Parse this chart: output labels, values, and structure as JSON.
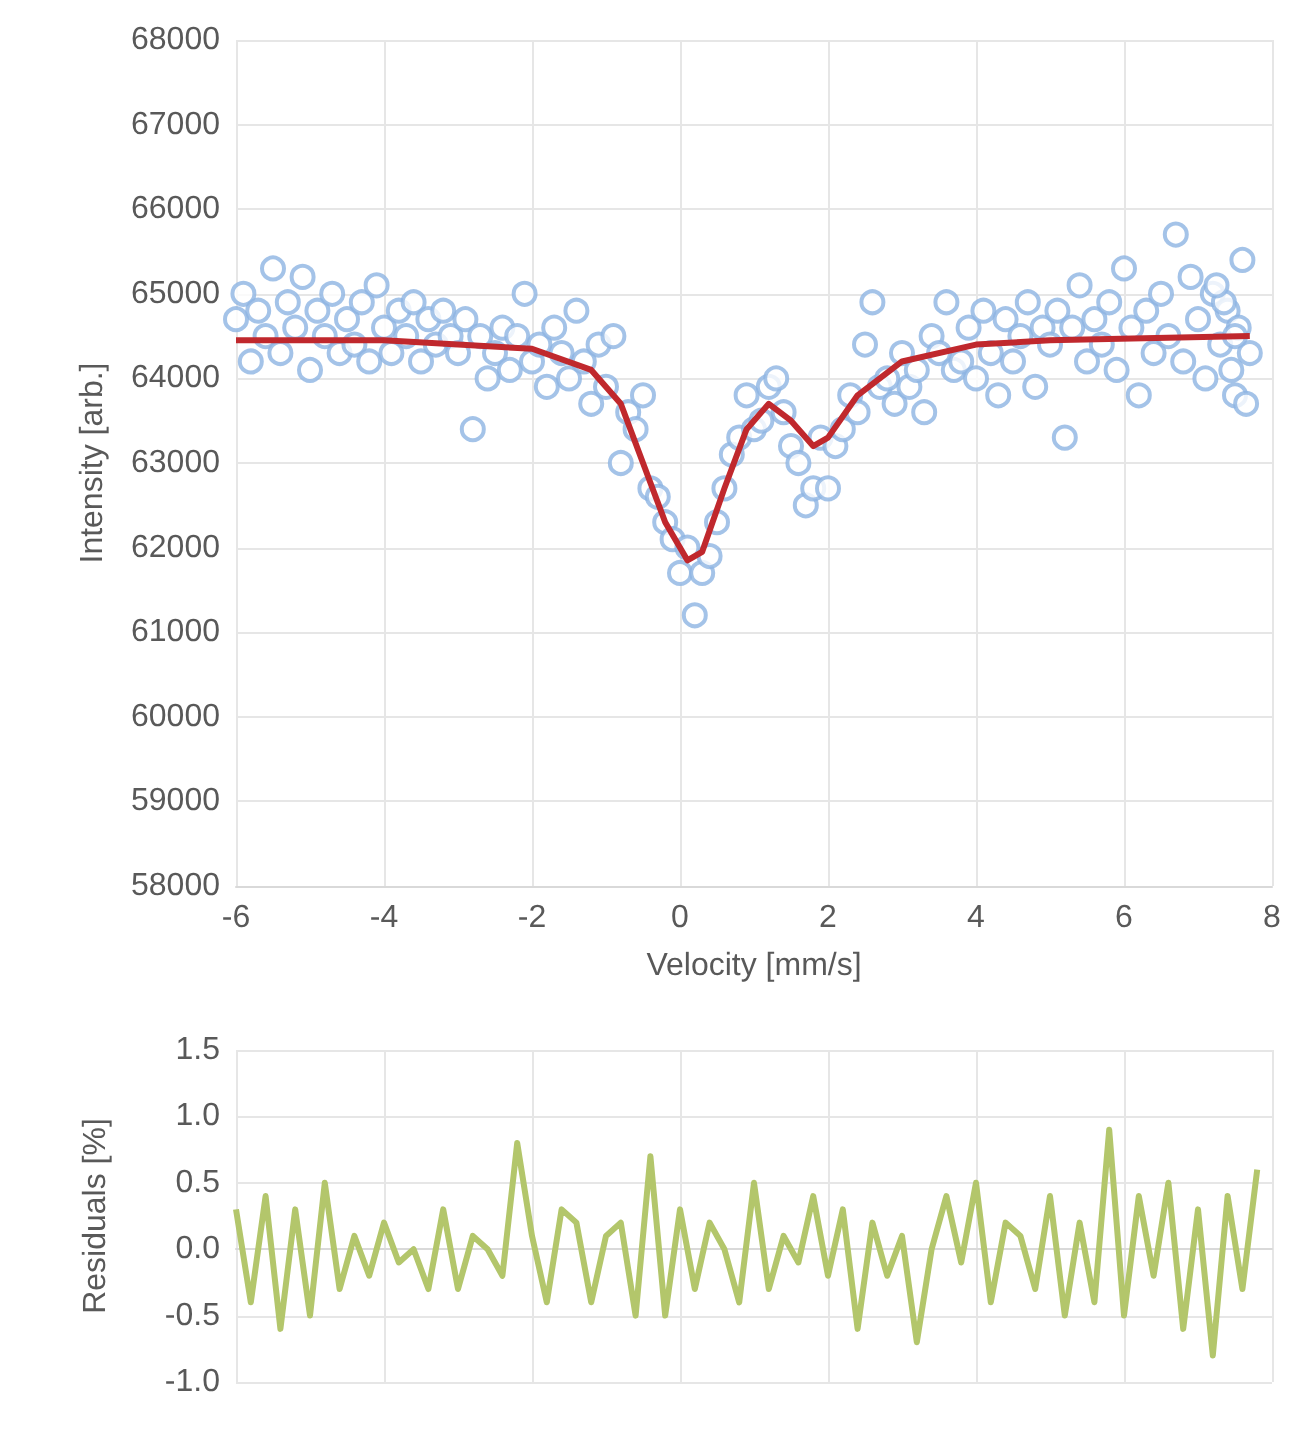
{
  "chart_data": [
    {
      "type": "scatter",
      "xlabel": "Velocity [mm/s]",
      "ylabel": "Intensity [arb.]",
      "xlim": [
        -6,
        8
      ],
      "xticks": [
        -6,
        -4,
        -2,
        0,
        2,
        4,
        6,
        8
      ],
      "ylim": [
        58000,
        68000
      ],
      "yticks": [
        58000,
        59000,
        60000,
        61000,
        62000,
        63000,
        64000,
        65000,
        66000,
        67000,
        68000
      ],
      "grid": true,
      "marker": "circle",
      "series": [
        {
          "color": "#8db4e2",
          "x": [
            -6.0,
            -5.9,
            -5.8,
            -5.7,
            -5.6,
            -5.5,
            -5.4,
            -5.3,
            -5.2,
            -5.1,
            -5.0,
            -4.9,
            -4.8,
            -4.7,
            -4.6,
            -4.5,
            -4.4,
            -4.3,
            -4.2,
            -4.1,
            -4.0,
            -3.9,
            -3.8,
            -3.7,
            -3.6,
            -3.5,
            -3.4,
            -3.3,
            -3.2,
            -3.1,
            -3.0,
            -2.9,
            -2.8,
            -2.7,
            -2.6,
            -2.5,
            -2.4,
            -2.3,
            -2.2,
            -2.1,
            -2.0,
            -1.9,
            -1.8,
            -1.7,
            -1.6,
            -1.5,
            -1.4,
            -1.3,
            -1.2,
            -1.1,
            -1.0,
            -0.9,
            -0.8,
            -0.7,
            -0.6,
            -0.5,
            -0.4,
            -0.3,
            -0.2,
            -0.1,
            0.0,
            0.1,
            0.2,
            0.3,
            0.4,
            0.5,
            0.6,
            0.7,
            0.8,
            0.9,
            1.0,
            1.1,
            1.2,
            1.3,
            1.4,
            1.5,
            1.6,
            1.7,
            1.8,
            1.9,
            2.0,
            2.1,
            2.2,
            2.3,
            2.4,
            2.5,
            2.6,
            2.7,
            2.8,
            2.9,
            3.0,
            3.1,
            3.2,
            3.3,
            3.4,
            3.5,
            3.6,
            3.7,
            3.8,
            3.9,
            4.0,
            4.1,
            4.2,
            4.3,
            4.4,
            4.5,
            4.6,
            4.7,
            4.8,
            4.9,
            5.0,
            5.1,
            5.2,
            5.3,
            5.4,
            5.5,
            5.6,
            5.7,
            5.8,
            5.9,
            6.0,
            6.1,
            6.2,
            6.3,
            6.4,
            6.5,
            6.6,
            6.7,
            6.8,
            6.9,
            7.0,
            7.1,
            7.2,
            7.3,
            7.4,
            7.5,
            7.6,
            7.7,
            7.35,
            7.45,
            7.55,
            7.65,
            7.25,
            7.5
          ],
          "values": [
            64700,
            65000,
            64200,
            64800,
            64500,
            65300,
            64300,
            64900,
            64600,
            65200,
            64100,
            64800,
            64500,
            65000,
            64300,
            64700,
            64400,
            64900,
            64200,
            65100,
            64600,
            64300,
            64800,
            64500,
            64900,
            64200,
            64700,
            64400,
            64800,
            64500,
            64300,
            64700,
            63400,
            64500,
            64000,
            64300,
            64600,
            64100,
            64500,
            65000,
            64200,
            64400,
            63900,
            64600,
            64300,
            64000,
            64800,
            64200,
            63700,
            64400,
            63900,
            64500,
            63000,
            63600,
            63400,
            63800,
            62700,
            62600,
            62300,
            62100,
            61700,
            62000,
            61200,
            61700,
            61900,
            62300,
            62700,
            63100,
            63300,
            63800,
            63400,
            63500,
            63900,
            64000,
            63600,
            63200,
            63000,
            62500,
            62700,
            63300,
            62700,
            63200,
            63400,
            63800,
            63600,
            64400,
            64900,
            63900,
            64000,
            63700,
            64300,
            63900,
            64100,
            63600,
            64500,
            64300,
            64900,
            64100,
            64200,
            64600,
            64000,
            64800,
            64300,
            63800,
            64700,
            64200,
            64500,
            64900,
            63900,
            64600,
            64400,
            64800,
            63300,
            64600,
            65100,
            64200,
            64700,
            64400,
            64900,
            64100,
            65300,
            64600,
            63800,
            64800,
            64300,
            65000,
            64500,
            65700,
            64200,
            65200,
            64700,
            64000,
            65000,
            64400,
            64800,
            63800,
            65400,
            64300,
            64900,
            64100,
            64600,
            63700,
            65100,
            64500
          ]
        },
        {
          "type": "line",
          "marker": "none",
          "color": "#c0282d",
          "x": [
            -6,
            -4,
            -2,
            -1.2,
            -0.8,
            -0.5,
            -0.2,
            0.1,
            0.3,
            0.6,
            0.9,
            1.2,
            1.5,
            1.8,
            2.0,
            2.4,
            3.0,
            4.0,
            5.0,
            7.7
          ],
          "values": [
            64450,
            64450,
            64350,
            64100,
            63700,
            63000,
            62300,
            61850,
            61950,
            62700,
            63400,
            63700,
            63500,
            63200,
            63300,
            63800,
            64200,
            64400,
            64450,
            64500
          ]
        }
      ]
    },
    {
      "type": "line",
      "ylabel": "Residuals [%]",
      "xlim": [
        -6,
        8
      ],
      "xticks": [
        -6,
        -4,
        -2,
        0,
        2,
        4,
        6,
        8
      ],
      "ylim": [
        -1,
        1.5
      ],
      "yticks": [
        {
          "value": -1,
          "label": "-1.0"
        },
        {
          "value": -0.5,
          "label": "-0.5"
        },
        {
          "value": 0,
          "label": "0.0"
        },
        {
          "value": 0.5,
          "label": "0.5"
        },
        {
          "value": 1,
          "label": "1.0"
        },
        {
          "value": 1.5,
          "label": "1.5"
        }
      ],
      "grid": true,
      "tick_labels": "y",
      "marker": "none",
      "series": [
        {
          "color": "#b3c66b",
          "x": [
            -6.0,
            -5.8,
            -5.6,
            -5.4,
            -5.2,
            -5.0,
            -4.8,
            -4.6,
            -4.4,
            -4.2,
            -4.0,
            -3.8,
            -3.6,
            -3.4,
            -3.2,
            -3.0,
            -2.8,
            -2.6,
            -2.4,
            -2.2,
            -2.0,
            -1.8,
            -1.6,
            -1.4,
            -1.2,
            -1.0,
            -0.8,
            -0.6,
            -0.4,
            -0.2,
            0.0,
            0.2,
            0.4,
            0.6,
            0.8,
            1.0,
            1.2,
            1.4,
            1.6,
            1.8,
            2.0,
            2.2,
            2.4,
            2.6,
            2.8,
            3.0,
            3.2,
            3.4,
            3.6,
            3.8,
            4.0,
            4.2,
            4.4,
            4.6,
            4.8,
            5.0,
            5.2,
            5.4,
            5.6,
            5.8,
            6.0,
            6.2,
            6.4,
            6.6,
            6.8,
            7.0,
            7.2,
            7.4,
            7.6,
            7.8
          ],
          "values": [
            0.3,
            -0.4,
            0.4,
            -0.6,
            0.3,
            -0.5,
            0.5,
            -0.3,
            0.1,
            -0.2,
            0.2,
            -0.1,
            0.0,
            -0.3,
            0.3,
            -0.3,
            0.1,
            0.0,
            -0.2,
            0.8,
            0.1,
            -0.4,
            0.3,
            0.2,
            -0.4,
            0.1,
            0.2,
            -0.5,
            0.7,
            -0.5,
            0.3,
            -0.3,
            0.2,
            0.0,
            -0.4,
            0.5,
            -0.3,
            0.1,
            -0.1,
            0.4,
            -0.2,
            0.3,
            -0.6,
            0.2,
            -0.2,
            0.1,
            -0.7,
            0.0,
            0.4,
            -0.1,
            0.5,
            -0.4,
            0.2,
            0.1,
            -0.3,
            0.4,
            -0.5,
            0.2,
            -0.4,
            0.9,
            -0.5,
            0.4,
            -0.2,
            0.5,
            -0.6,
            0.3,
            -0.8,
            0.4,
            -0.3,
            0.6
          ]
        }
      ]
    }
  ]
}
